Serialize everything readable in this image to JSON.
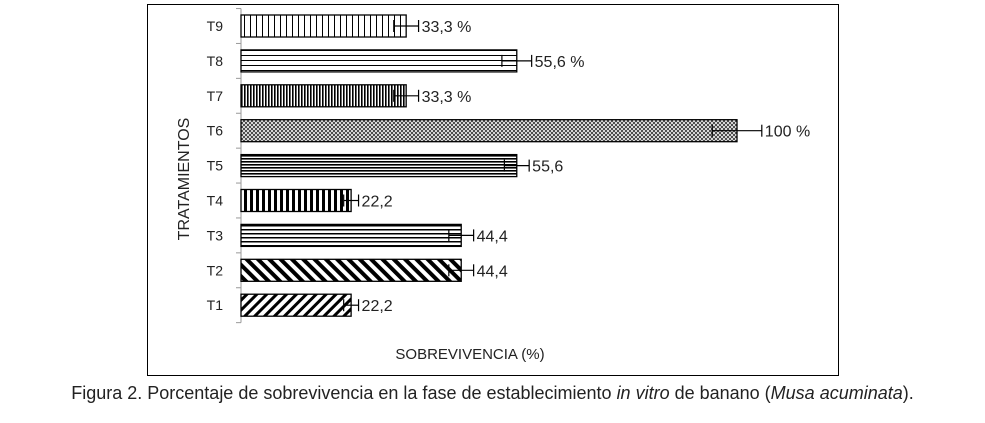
{
  "chart_data": {
    "type": "bar",
    "orientation": "horizontal",
    "categories": [
      "T1",
      "T2",
      "T3",
      "T4",
      "T5",
      "T6",
      "T7",
      "T8",
      "T9"
    ],
    "values": [
      22.2,
      44.4,
      44.4,
      22.2,
      55.6,
      100,
      33.3,
      55.6,
      33.3
    ],
    "error": [
      1.5,
      2.5,
      2.5,
      1.5,
      2.5,
      5,
      2.5,
      3,
      2.5
    ],
    "data_labels": [
      "22,2",
      "44,4",
      "44,4",
      "22,2",
      "55,6",
      "100 %",
      "33,3 %",
      "55,6 %",
      "33,3 %"
    ],
    "patterns": [
      "diag-fwd",
      "diag-back",
      "horiz",
      "vert-thick",
      "horiz-dense",
      "crosshatch",
      "vert-dense",
      "horiz-sparse",
      "vert-sparse"
    ],
    "xlabel": "SOBREVIVENCIA (%)",
    "ylabel": "TRATAMIENTOS",
    "xlim": [
      0,
      120
    ],
    "grid": false,
    "legend": false
  },
  "caption": {
    "part1": "Figura 2. Porcentaje de sobrevivencia en la fase de establecimiento ",
    "italic1": "in vitro",
    "part2": " de banano (",
    "italic2": "Musa acuminata",
    "part3": ")."
  }
}
